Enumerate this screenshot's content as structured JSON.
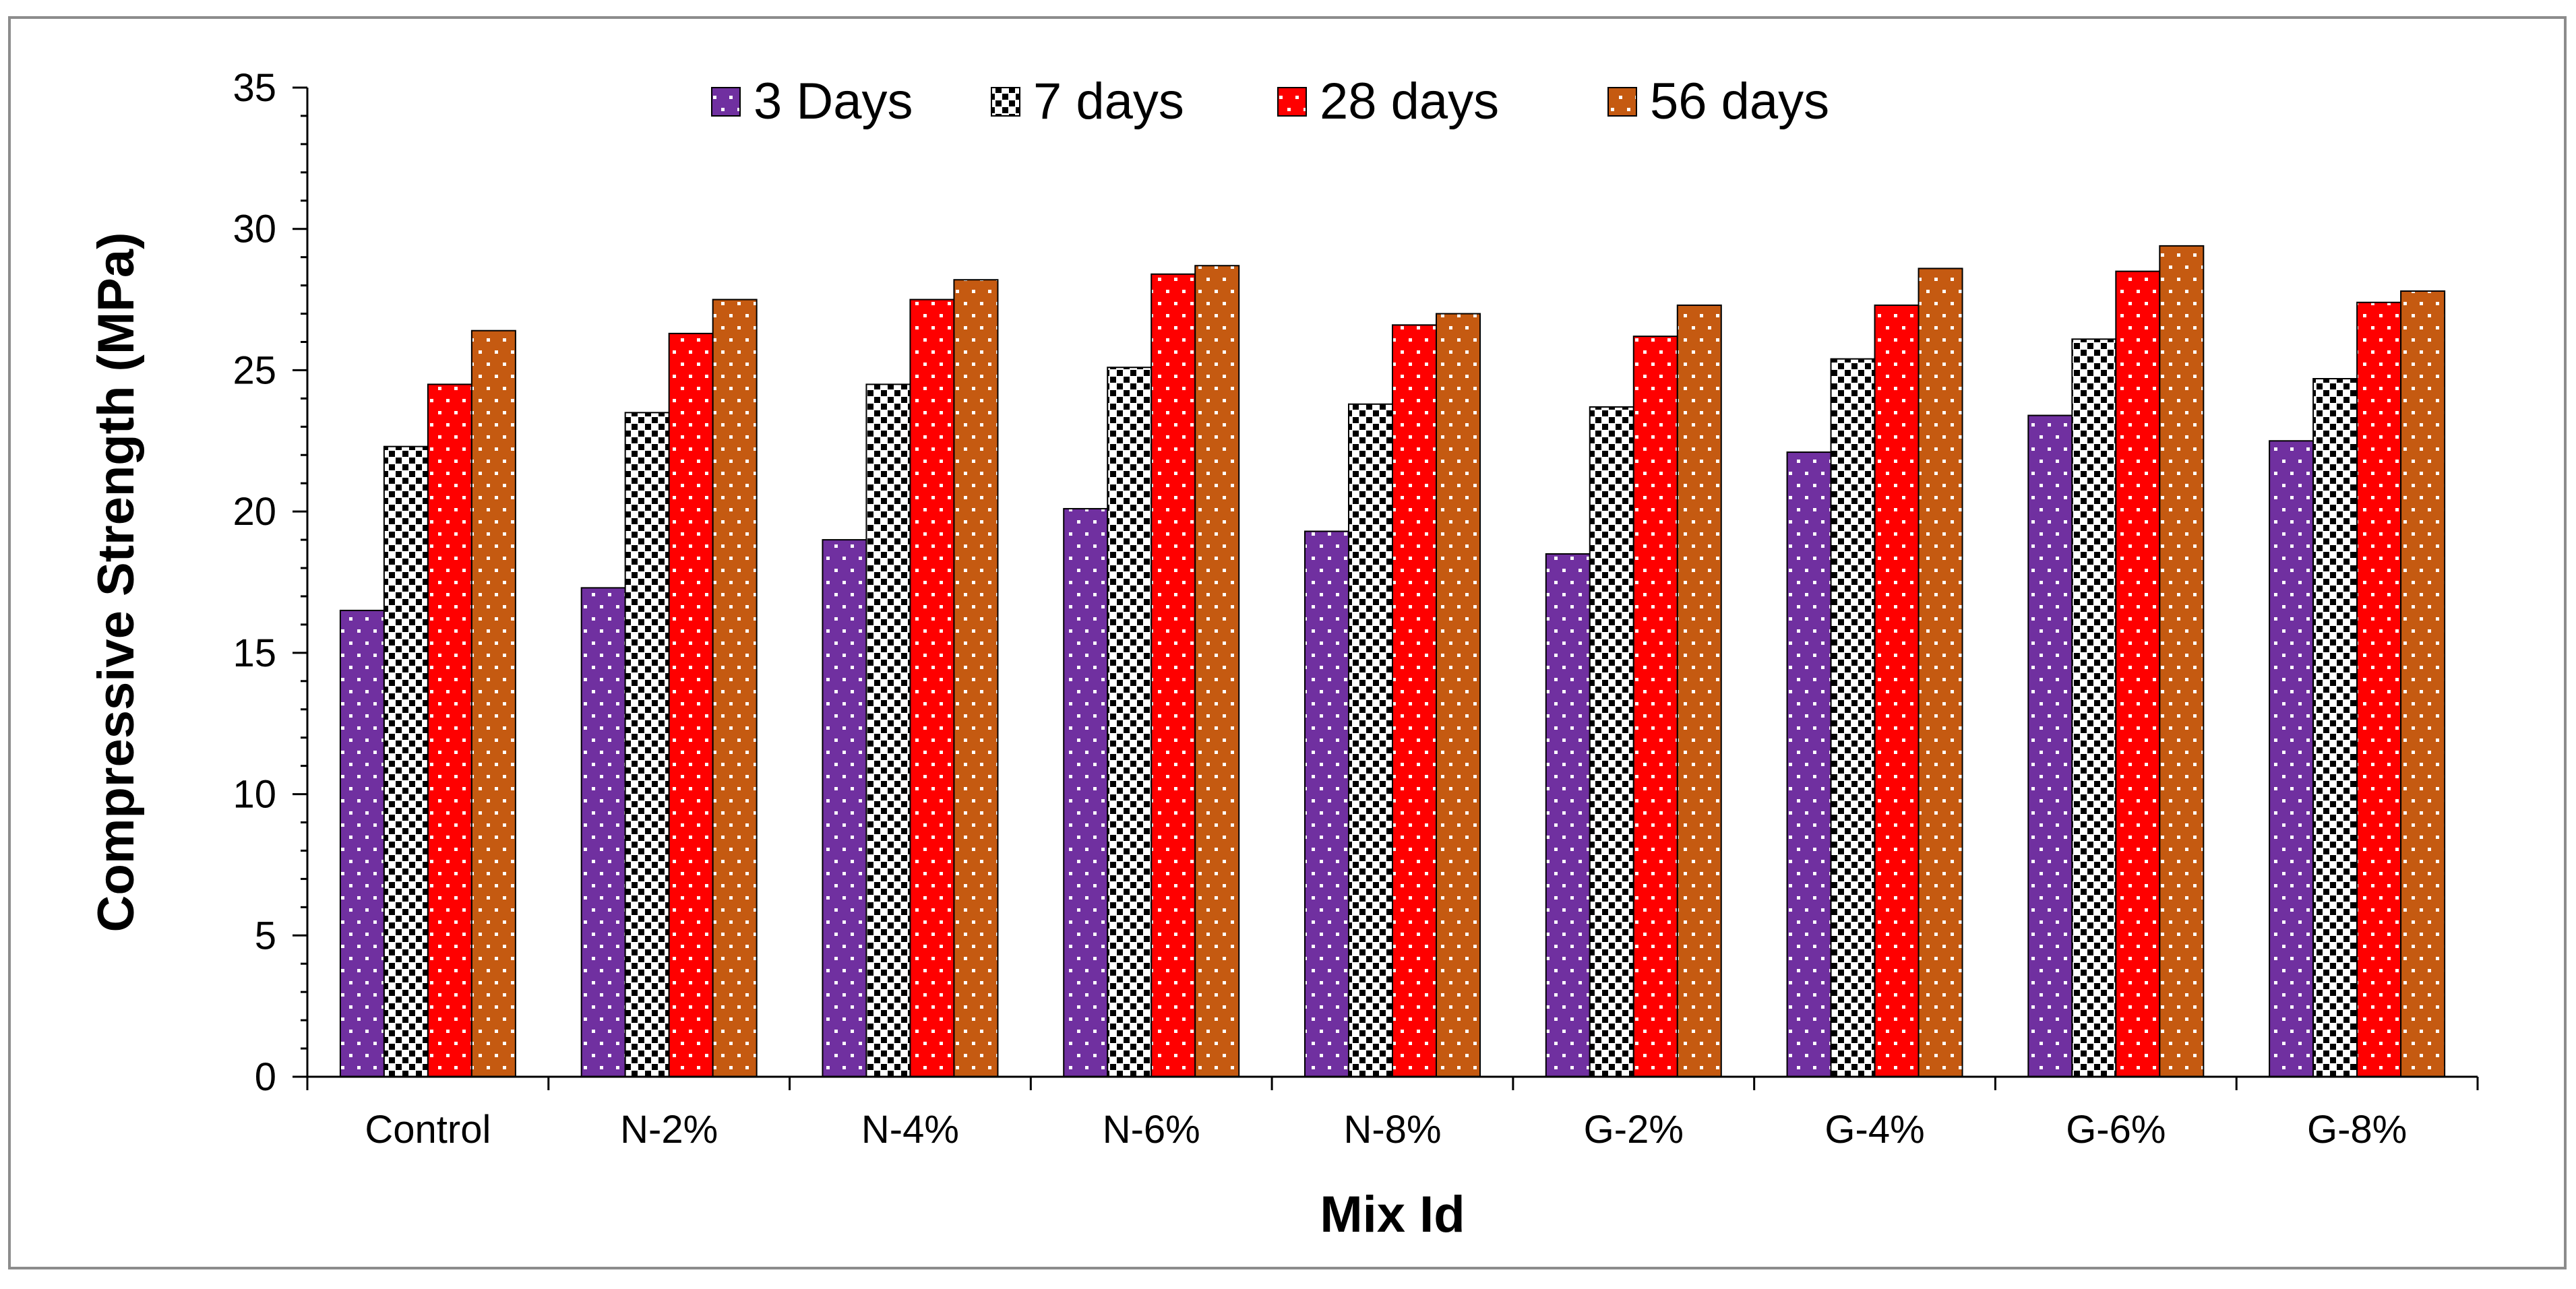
{
  "chart_data": {
    "type": "bar",
    "title": "",
    "xlabel": "Mix Id",
    "ylabel": "Compressive Strength (MPa)",
    "ylim": [
      0,
      35
    ],
    "yticks": [
      "0",
      "5",
      "10",
      "15",
      "20",
      "25",
      "30",
      "35"
    ],
    "grid": false,
    "legend_position": "top-center",
    "categories": [
      "Control",
      "N-2%",
      "N-4%",
      "N-6%",
      "N-8%",
      "G-2%",
      "G-4%",
      "G-6%",
      "G-8%"
    ],
    "series": [
      {
        "name": "3 Days",
        "color": "#7030a0",
        "pattern": "dots-white",
        "values": [
          16.5,
          17.3,
          19.0,
          20.1,
          19.3,
          18.5,
          22.1,
          23.4,
          22.5
        ]
      },
      {
        "name": "7 days",
        "color": "#ffffff",
        "pattern": "checker-black",
        "values": [
          22.3,
          23.5,
          24.5,
          25.1,
          23.8,
          23.7,
          25.4,
          26.1,
          24.7
        ]
      },
      {
        "name": "28 days",
        "color": "#ff0000",
        "pattern": "dots-white",
        "values": [
          24.5,
          26.3,
          27.5,
          28.4,
          26.6,
          26.2,
          27.3,
          28.5,
          27.4
        ]
      },
      {
        "name": "56 days",
        "color": "#c55a11",
        "pattern": "dots-white",
        "values": [
          26.4,
          27.5,
          28.2,
          28.7,
          27.0,
          27.3,
          28.6,
          29.4,
          27.8
        ]
      }
    ]
  }
}
